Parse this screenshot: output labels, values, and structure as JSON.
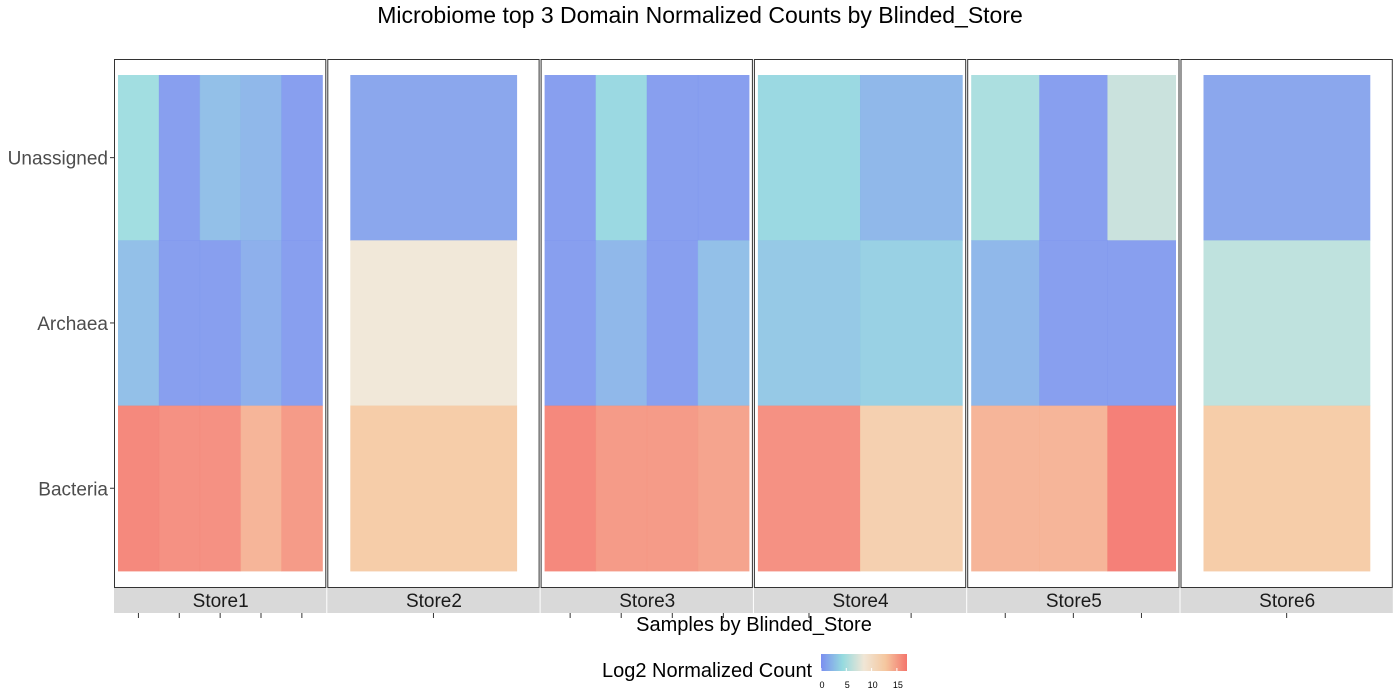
{
  "chart_data": {
    "type": "heatmap",
    "title": "Microbiome top 3 Domain Normalized Counts by Blinded_Store",
    "xlabel": "Samples by Blinded_Store",
    "ylabel": "",
    "rows": [
      "Unassigned",
      "Archaea",
      "Bacteria"
    ],
    "legend": {
      "title": "Log2 Normalized Count",
      "ticks": [
        "0",
        "5",
        "10",
        "15"
      ],
      "range": [
        0,
        17
      ],
      "colors": [
        "#7b8ef0",
        "#95dadf",
        "#f0e6d6",
        "#f5c79f",
        "#f4756c"
      ]
    },
    "panels": [
      {
        "store": "Store1",
        "samples": 5,
        "values": [
          [
            4.5,
            0.5,
            2.5,
            2.0,
            0.5
          ],
          [
            2.5,
            0.5,
            0.5,
            1.5,
            0.5
          ],
          [
            16.5,
            16.0,
            16.0,
            14.0,
            15.5
          ]
        ]
      },
      {
        "store": "Store2",
        "samples": 1,
        "values": [
          [
            1.0
          ],
          [
            8.5
          ],
          [
            12.5
          ]
        ]
      },
      {
        "store": "Store3",
        "samples": 4,
        "values": [
          [
            0.5,
            4.0,
            0.5,
            0.5
          ],
          [
            0.5,
            2.0,
            0.5,
            2.5
          ],
          [
            16.5,
            15.5,
            15.5,
            15.0
          ]
        ]
      },
      {
        "store": "Store4",
        "samples": 2,
        "values": [
          [
            4.0,
            2.0
          ],
          [
            3.0,
            3.5
          ],
          [
            16.0,
            12.0
          ]
        ]
      },
      {
        "store": "Store5",
        "samples": 3,
        "values": [
          [
            5.0,
            0.5,
            6.5
          ],
          [
            2.0,
            0.5,
            0.5
          ],
          [
            14.0,
            14.0,
            17.0
          ]
        ]
      },
      {
        "store": "Store6",
        "samples": 1,
        "values": [
          [
            1.0
          ],
          [
            6.0
          ],
          [
            12.5
          ]
        ]
      }
    ]
  }
}
